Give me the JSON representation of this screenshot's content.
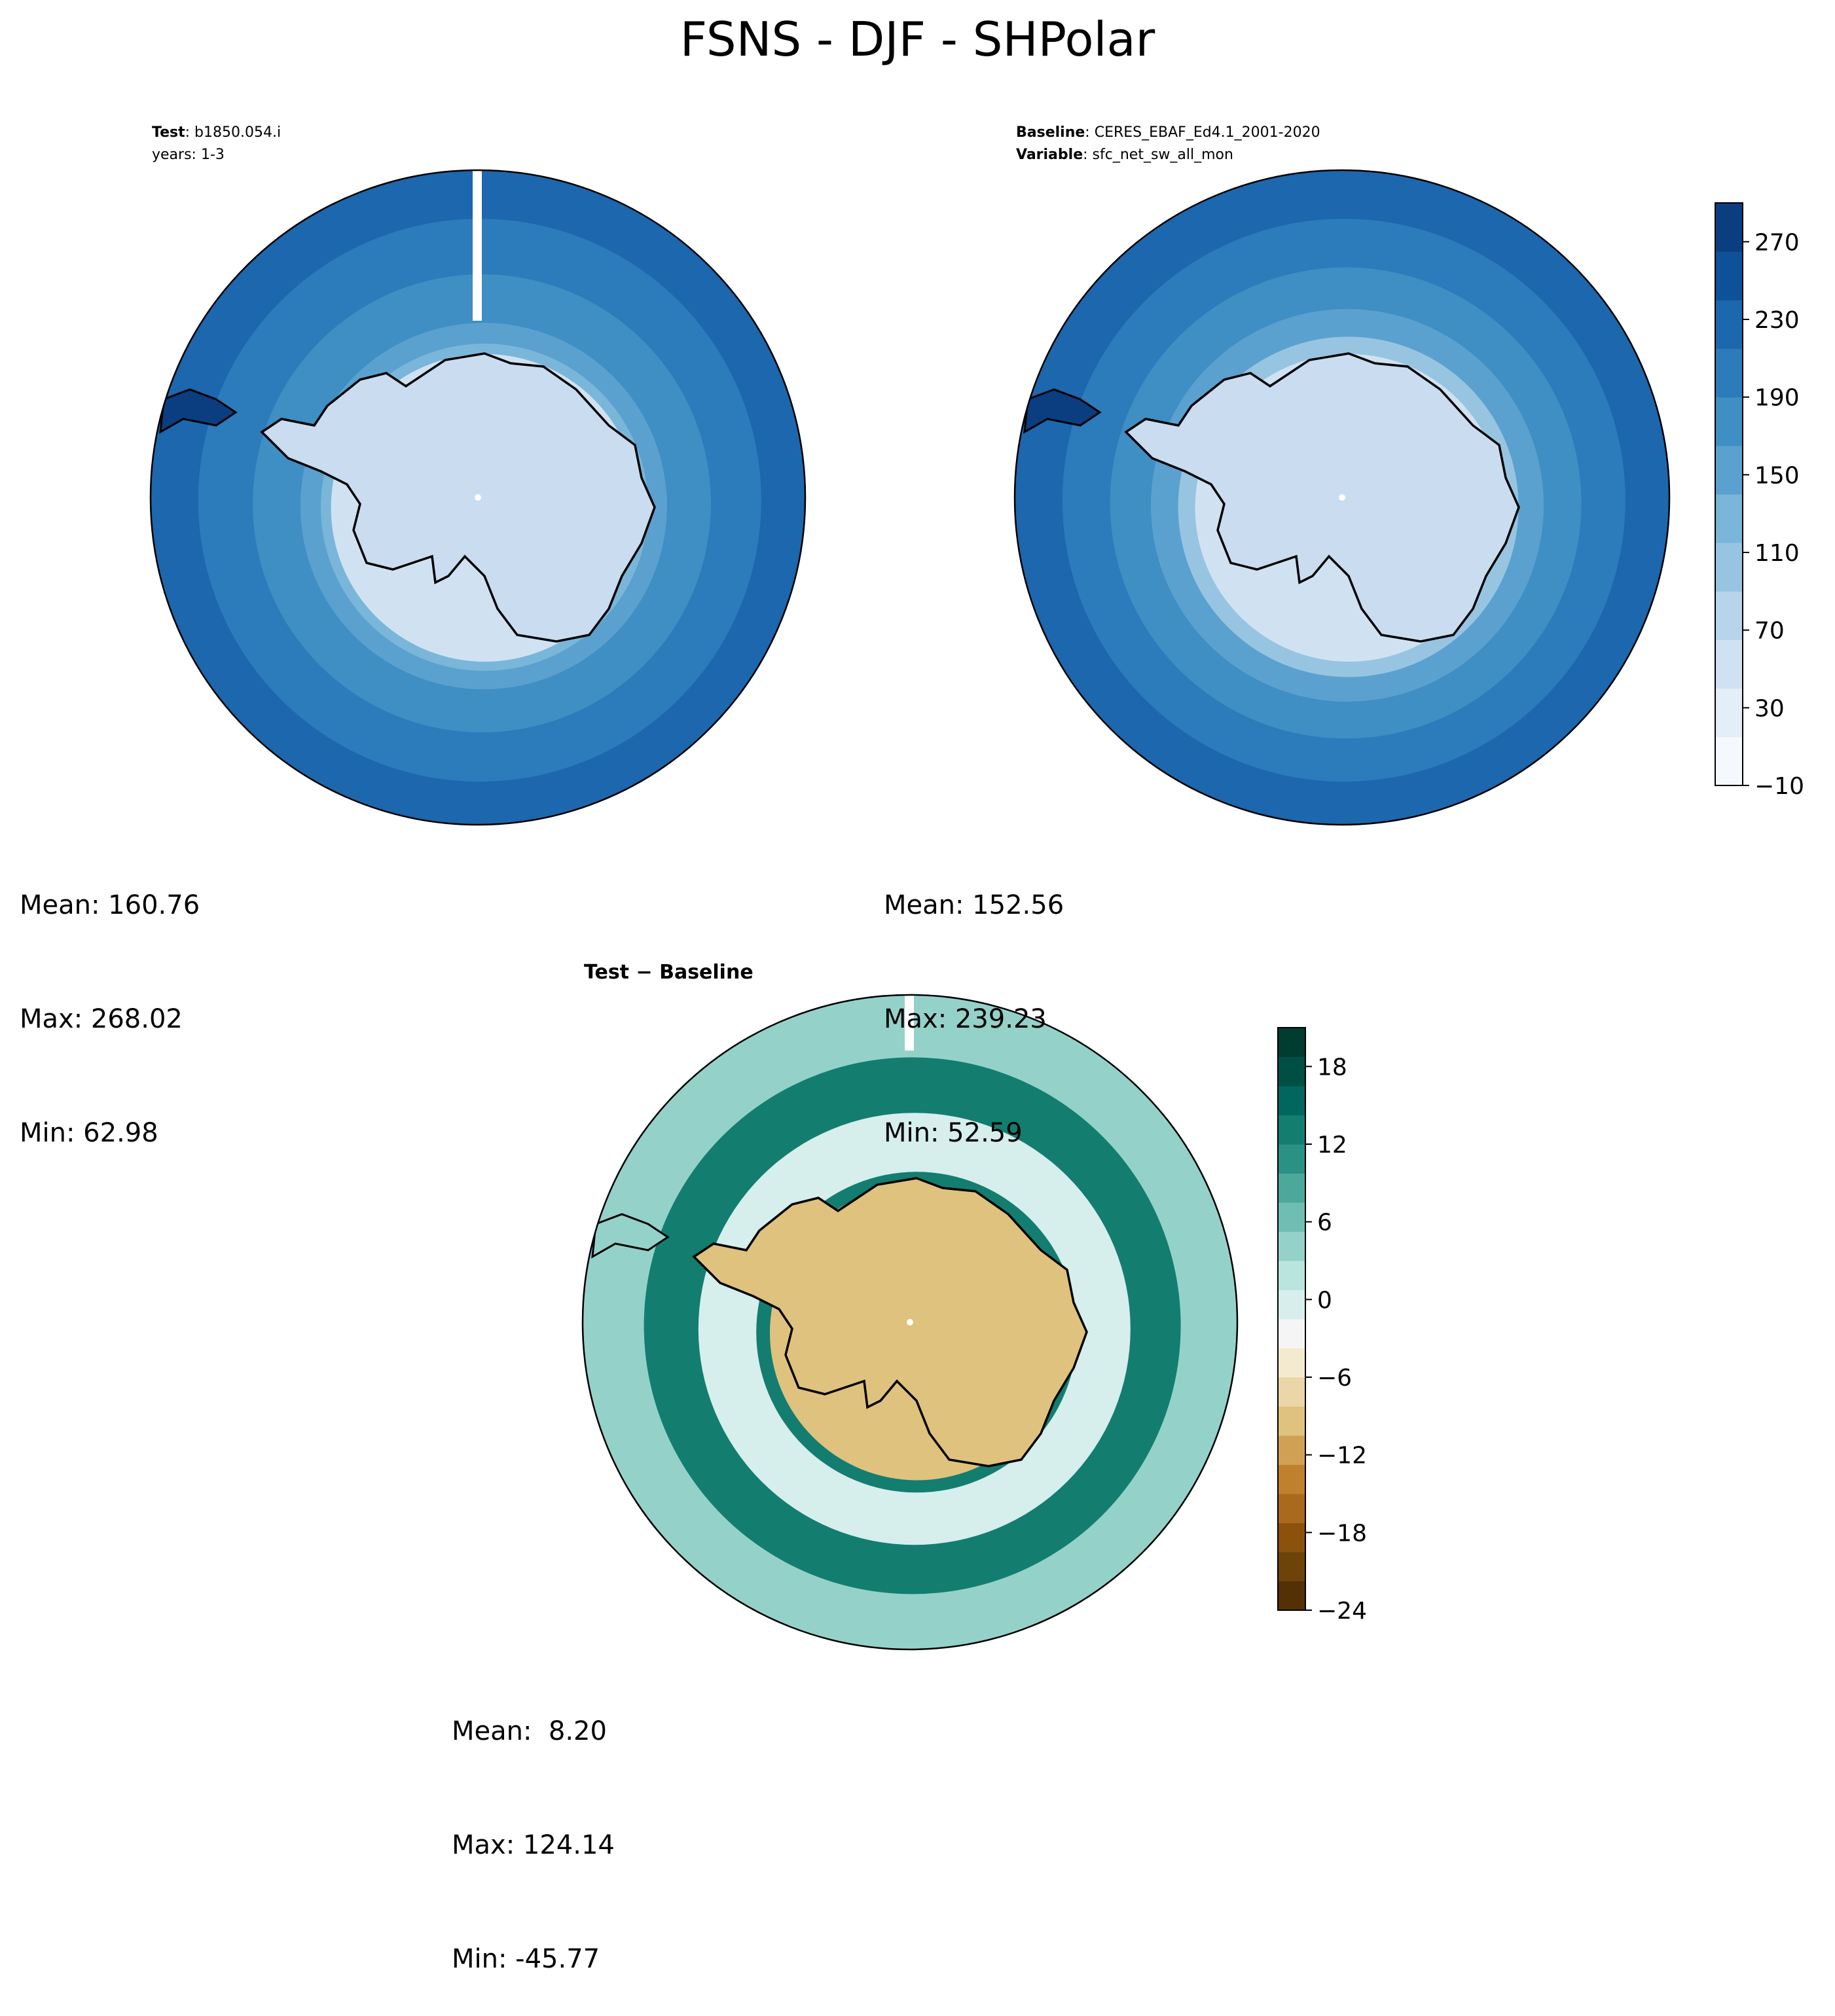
{
  "figure_title": "FSNS - DJF - SHPolar",
  "colors": {
    "seq": [
      "#f5f9fe",
      "#e3eef8",
      "#d0e2f2",
      "#b6d4ea",
      "#97c5e1",
      "#7ab6d9",
      "#5aa1cf",
      "#3f8ec4",
      "#2c7bba",
      "#1c67ad",
      "#0d5198",
      "#0a3e80"
    ],
    "div": [
      "#543005",
      "#6e4309",
      "#8c510a",
      "#a96a1d",
      "#bf812d",
      "#d0a155",
      "#dfc27d",
      "#ead6a6",
      "#f4ead0",
      "#f5f5f5",
      "#d6eeec",
      "#bae4de",
      "#94d2c9",
      "#6fbeb3",
      "#4ba89b",
      "#2a9184",
      "#137d70",
      "#01665e",
      "#004f45",
      "#003c30"
    ],
    "land": "#cadcf0",
    "coast": "#000000"
  },
  "chart_data": [
    {
      "type": "heatmap",
      "panel": "test",
      "title_label": "Test",
      "title_value": "b1850.054.i",
      "subtitle": "years: 1-3",
      "stats": {
        "mean": "Mean: 160.76",
        "max": "Max: 268.02",
        "min": "Min: 62.98"
      },
      "region": "South polar stereographic",
      "zones": [
        {
          "r_frac": 1.0,
          "value": 215
        },
        {
          "r_frac": 0.86,
          "value": 200
        },
        {
          "r_frac": 0.7,
          "value": 175
        },
        {
          "r_frac": 0.56,
          "value": 160
        },
        {
          "r_frac": 0.5,
          "value": 130
        },
        {
          "r_frac": 0.47,
          "value": 60
        }
      ]
    },
    {
      "type": "heatmap",
      "panel": "baseline",
      "title_label": "Baseline",
      "title_value": "CERES_EBAF_Ed4.1_2001-2020",
      "subtitle_label": "Variable",
      "subtitle_value": "sfc_net_sw_all_mon",
      "stats": {
        "mean": "Mean: 152.56",
        "max": "Max: 239.23",
        "min": "Min: 52.59"
      },
      "region": "South polar stereographic",
      "zones": [
        {
          "r_frac": 1.0,
          "value": 215
        },
        {
          "r_frac": 0.86,
          "value": 195
        },
        {
          "r_frac": 0.72,
          "value": 170
        },
        {
          "r_frac": 0.6,
          "value": 140
        },
        {
          "r_frac": 0.52,
          "value": 110
        },
        {
          "r_frac": 0.47,
          "value": 60
        }
      ],
      "colorbar": {
        "min": -10,
        "max": 290,
        "step": 25,
        "ticks": [
          -10,
          30,
          70,
          110,
          150,
          190,
          230,
          270
        ],
        "tick_labels": [
          "−10",
          "30",
          "70",
          "110",
          "150",
          "190",
          "230",
          "270"
        ]
      }
    },
    {
      "type": "heatmap",
      "panel": "difference",
      "title_label": "Test",
      "title_sep": "−",
      "title_value": "Baseline",
      "stats": {
        "mean": "Mean:  8.20",
        "max": "Max: 124.14",
        "min": "Min: -45.77"
      },
      "region": "South polar stereographic",
      "zones": [
        {
          "r_frac": 1.0,
          "value": 3
        },
        {
          "r_frac": 0.82,
          "value": 12
        },
        {
          "r_frac": 0.66,
          "value": 0
        },
        {
          "r_frac": 0.49,
          "value": 14
        },
        {
          "r_frac": 0.45,
          "value": -10
        }
      ],
      "colorbar": {
        "min": -24,
        "max": 21,
        "step": 2.25,
        "ticks": [
          -24,
          -18,
          -12,
          -6,
          0,
          6,
          12,
          18
        ],
        "tick_labels": [
          "−24",
          "−18",
          "−12",
          "−6",
          "0",
          "6",
          "12",
          "18"
        ]
      }
    }
  ]
}
